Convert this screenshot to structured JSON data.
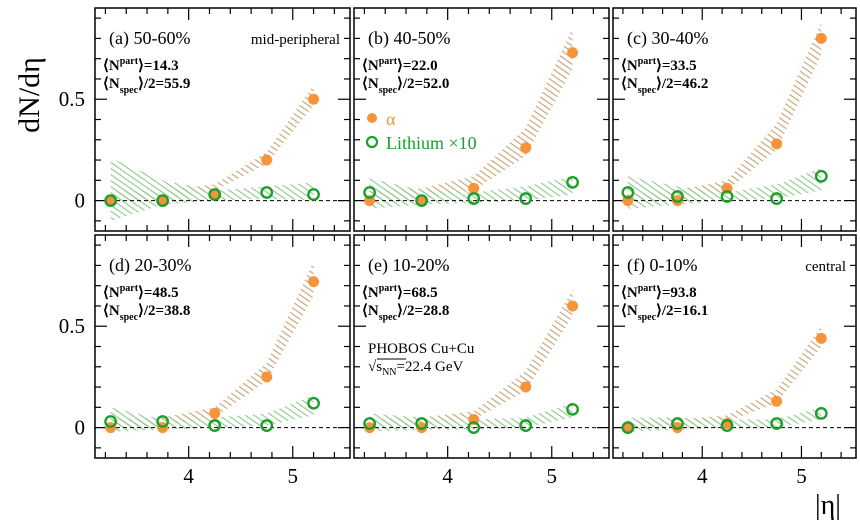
{
  "figure": {
    "ylabel": "dN/dη",
    "xlabel": "|η|",
    "collaboration": "PHOBOS Cu+Cu",
    "energy_label": "√sNN=22.4 GeV",
    "energy_sqrt_sym": "√",
    "energy_s": "s",
    "energy_sub": "NN",
    "energy_val": "=22.4 GeV",
    "legend": {
      "alpha": "α",
      "lithium": "Lithium ×10"
    },
    "colors": {
      "alpha": "#F7943B",
      "alpha_band": "#C8A070",
      "lithium": "#1E9E2A",
      "lithium_band": "#8CC98A"
    }
  },
  "chart_data": [
    {
      "type": "scatter",
      "panel_label": "(a) 50-60%",
      "centrality_note": "mid-peripheral",
      "npart_value": "=14.3",
      "nspec_value": "/2=55.9",
      "xlim": [
        3.1,
        5.55
      ],
      "ylim": [
        -0.15,
        0.95
      ],
      "xticks": [
        4,
        5
      ],
      "yticks": [
        0,
        0.5
      ],
      "series": [
        {
          "name": "α",
          "x": [
            3.25,
            3.75,
            4.25,
            4.75,
            5.2
          ],
          "values": [
            0.0,
            0.0,
            0.03,
            0.2,
            0.5
          ],
          "band_low": [
            0.0,
            0.01,
            0.05,
            0.18,
            0.47
          ],
          "band_high": [
            0.05,
            0.05,
            0.08,
            0.24,
            0.57
          ]
        },
        {
          "name": "Lithium ×10",
          "x": [
            3.25,
            3.75,
            4.25,
            4.75,
            5.2
          ],
          "values": [
            0.0,
            0.0,
            0.03,
            0.04,
            0.03
          ],
          "band_low": [
            -0.1,
            -0.02,
            0.0,
            0.01,
            0.0
          ],
          "band_high": [
            0.21,
            0.1,
            0.05,
            0.07,
            0.09
          ]
        }
      ]
    },
    {
      "type": "scatter",
      "panel_label": "(b) 40-50%",
      "centrality_note": "",
      "npart_value": "=22.0",
      "nspec_value": "/2=52.0",
      "xlim": [
        3.1,
        5.55
      ],
      "ylim": [
        -0.15,
        0.95
      ],
      "xticks": [
        4,
        5
      ],
      "yticks": [
        0,
        0.5
      ],
      "series": [
        {
          "name": "α",
          "x": [
            3.25,
            3.75,
            4.25,
            4.75,
            5.2
          ],
          "values": [
            0.0,
            0.0,
            0.06,
            0.26,
            0.73
          ],
          "band_low": [
            0.0,
            0.01,
            0.05,
            0.22,
            0.65
          ],
          "band_high": [
            0.05,
            0.06,
            0.12,
            0.36,
            0.85
          ]
        },
        {
          "name": "Lithium ×10",
          "x": [
            3.25,
            3.75,
            4.25,
            4.75,
            5.2
          ],
          "values": [
            0.04,
            0.0,
            0.01,
            0.01,
            0.09
          ],
          "band_low": [
            -0.04,
            -0.02,
            -0.01,
            0.0,
            0.03
          ],
          "band_high": [
            0.11,
            0.05,
            0.04,
            0.07,
            0.12
          ]
        }
      ]
    },
    {
      "type": "scatter",
      "panel_label": "(c) 30-40%",
      "centrality_note": "",
      "npart_value": "=33.5",
      "nspec_value": "/2=46.2",
      "xlim": [
        3.1,
        5.55
      ],
      "ylim": [
        -0.15,
        0.95
      ],
      "xticks": [
        4,
        5
      ],
      "yticks": [
        0,
        0.5
      ],
      "series": [
        {
          "name": "α",
          "x": [
            3.25,
            3.75,
            4.25,
            4.75,
            5.2
          ],
          "values": [
            0.0,
            0.0,
            0.06,
            0.28,
            0.8
          ],
          "band_low": [
            -0.01,
            0.0,
            0.05,
            0.25,
            0.72
          ],
          "band_high": [
            0.03,
            0.05,
            0.1,
            0.38,
            0.88
          ]
        },
        {
          "name": "Lithium ×10",
          "x": [
            3.25,
            3.75,
            4.25,
            4.75,
            5.2
          ],
          "values": [
            0.04,
            0.02,
            0.02,
            0.01,
            0.12
          ],
          "band_low": [
            -0.04,
            -0.02,
            0.0,
            0.01,
            0.05
          ],
          "band_high": [
            0.12,
            0.07,
            0.04,
            0.08,
            0.16
          ]
        }
      ]
    },
    {
      "type": "scatter",
      "panel_label": "(d) 20-30%",
      "centrality_note": "",
      "npart_value": "=48.5",
      "nspec_value": "/2=38.8",
      "xlim": [
        3.1,
        5.55
      ],
      "ylim": [
        -0.15,
        0.95
      ],
      "xticks": [
        4,
        5
      ],
      "yticks": [
        0,
        0.5
      ],
      "series": [
        {
          "name": "α",
          "x": [
            3.25,
            3.75,
            4.25,
            4.75,
            5.2
          ],
          "values": [
            0.0,
            0.0,
            0.07,
            0.25,
            0.72
          ],
          "band_low": [
            0.0,
            0.01,
            0.05,
            0.23,
            0.65
          ],
          "band_high": [
            0.04,
            0.05,
            0.1,
            0.32,
            0.82
          ]
        },
        {
          "name": "Lithium ×10",
          "x": [
            3.25,
            3.75,
            4.25,
            4.75,
            5.2
          ],
          "values": [
            0.03,
            0.03,
            0.01,
            0.01,
            0.12
          ],
          "band_low": [
            -0.02,
            -0.01,
            0.0,
            0.01,
            0.06
          ],
          "band_high": [
            0.1,
            0.04,
            0.05,
            0.07,
            0.16
          ]
        }
      ]
    },
    {
      "type": "scatter",
      "panel_label": "(e) 10-20%",
      "centrality_note": "",
      "npart_value": "=68.5",
      "nspec_value": "/2=28.8",
      "xlim": [
        3.1,
        5.55
      ],
      "ylim": [
        -0.15,
        0.95
      ],
      "xticks": [
        4,
        5
      ],
      "yticks": [
        0,
        0.5
      ],
      "series": [
        {
          "name": "α",
          "x": [
            3.25,
            3.75,
            4.25,
            4.75,
            5.2
          ],
          "values": [
            0.0,
            0.0,
            0.04,
            0.2,
            0.6
          ],
          "band_low": [
            0.0,
            0.01,
            0.04,
            0.18,
            0.55
          ],
          "band_high": [
            0.04,
            0.05,
            0.08,
            0.28,
            0.68
          ]
        },
        {
          "name": "Lithium ×10",
          "x": [
            3.25,
            3.75,
            4.25,
            4.75,
            5.2
          ],
          "values": [
            0.02,
            0.02,
            0.0,
            0.01,
            0.09
          ],
          "band_low": [
            -0.02,
            -0.01,
            -0.01,
            0.0,
            0.05
          ],
          "band_high": [
            0.07,
            0.05,
            0.04,
            0.05,
            0.12
          ]
        }
      ]
    },
    {
      "type": "scatter",
      "panel_label": "(f) 0-10%",
      "centrality_note": "central",
      "npart_value": "=93.8",
      "nspec_value": "/2=16.1",
      "xlim": [
        3.1,
        5.55
      ],
      "ylim": [
        -0.15,
        0.95
      ],
      "xticks": [
        4,
        5
      ],
      "yticks": [
        0,
        0.5
      ],
      "series": [
        {
          "name": "α",
          "x": [
            3.25,
            3.75,
            4.25,
            4.75,
            5.2
          ],
          "values": [
            0.0,
            0.0,
            0.02,
            0.13,
            0.44
          ],
          "band_low": [
            0.0,
            0.01,
            0.03,
            0.12,
            0.4
          ],
          "band_high": [
            0.03,
            0.04,
            0.06,
            0.19,
            0.5
          ]
        },
        {
          "name": "Lithium ×10",
          "x": [
            3.25,
            3.75,
            4.25,
            4.75,
            5.2
          ],
          "values": [
            0.0,
            0.02,
            0.01,
            0.02,
            0.07
          ],
          "band_low": [
            -0.02,
            -0.01,
            0.0,
            0.0,
            0.04
          ],
          "band_high": [
            0.05,
            0.05,
            0.04,
            0.04,
            0.1
          ]
        }
      ]
    }
  ]
}
